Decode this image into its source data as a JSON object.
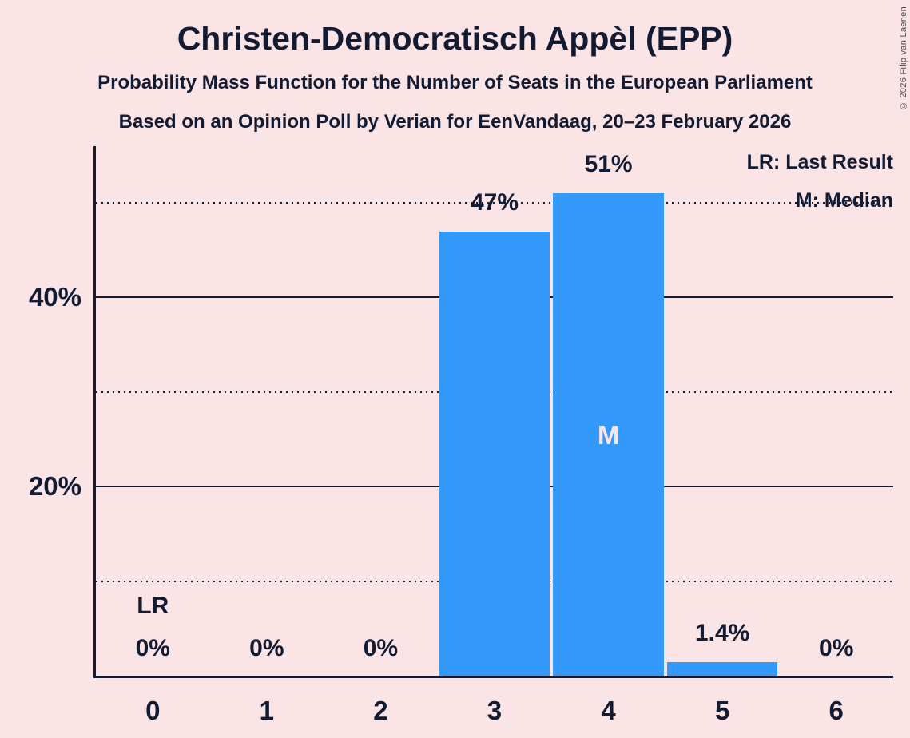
{
  "page": {
    "copyright": "© 2026 Filip van Laenen"
  },
  "chart_data": {
    "type": "bar",
    "title": "Christen-Democratisch Appèl (EPP)",
    "subtitle": "Probability Mass Function for the Number of Seats in the European Parliament",
    "subsubtitle": "Based on an Opinion Poll by Verian for EenVandaag, 20–23 February 2026",
    "categories": [
      "0",
      "1",
      "2",
      "3",
      "4",
      "5",
      "6"
    ],
    "values": [
      0,
      0,
      0,
      47,
      51,
      1.4,
      0
    ],
    "value_labels": [
      "0%",
      "0%",
      "0%",
      "47%",
      "51%",
      "1.4%",
      "0%"
    ],
    "ylim": [
      0,
      56
    ],
    "solid_gridlines_pct": [
      20,
      40
    ],
    "dotted_gridlines_pct": [
      10,
      30,
      50
    ],
    "y_tick_labels": [
      {
        "pct": 20,
        "label": "20%"
      },
      {
        "pct": 40,
        "label": "40%"
      }
    ],
    "legend": [
      {
        "label": "LR: Last Result"
      },
      {
        "label": "M: Median"
      }
    ],
    "legend_position": "top-right",
    "grid": true,
    "annotations": {
      "last_result_index": 0,
      "last_result_label": "LR",
      "median_index": 4,
      "median_label": "M"
    },
    "colors": {
      "background": "#fbe4e6",
      "bar": "#3399fa",
      "text": "#131b33",
      "median_text": "#fbe4e6",
      "copyright_text": "#4a4a55"
    }
  }
}
